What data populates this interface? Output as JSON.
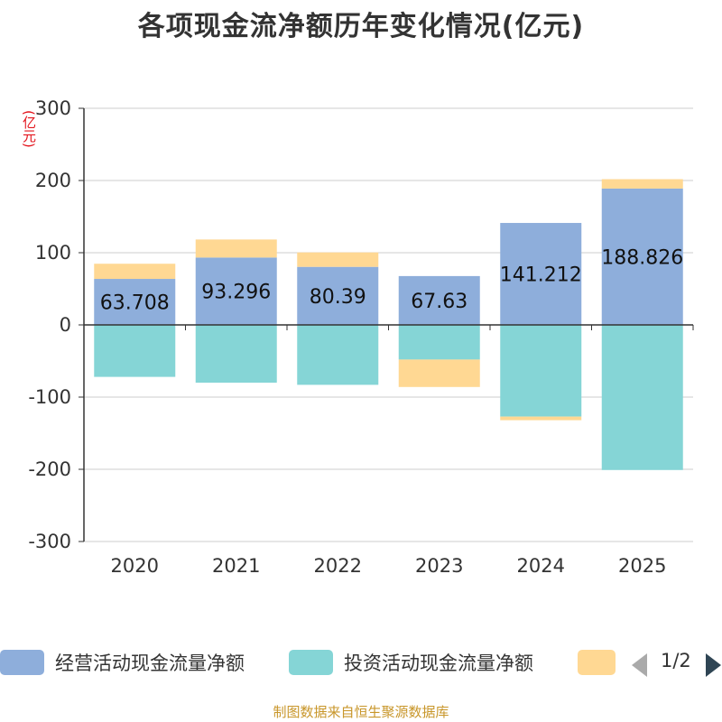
{
  "chart_data": {
    "type": "bar",
    "stacked": true,
    "title": "各项现金流净额历年变化情况(亿元)",
    "ylabel": "(亿元)",
    "ylim": [
      -300,
      300
    ],
    "yticks": [
      300,
      200,
      100,
      0,
      -100,
      -200,
      -300
    ],
    "categories": [
      "2020",
      "2021",
      "2022",
      "2023",
      "2024",
      "2025"
    ],
    "series": [
      {
        "name": "经营活动现金流量净额",
        "color": "#8eaedb",
        "values": [
          63.708,
          93.296,
          80.39,
          67.63,
          141.212,
          188.826
        ],
        "labels": [
          "63.708",
          "93.296",
          "80.39",
          "67.63",
          "141.212",
          "188.826"
        ]
      },
      {
        "name": "投资活动现金流量净额",
        "color": "#85d5d6",
        "values": [
          -72,
          -80,
          -83,
          -48,
          -127,
          -201
        ]
      },
      {
        "name": "",
        "color": "#ffd893",
        "values": [
          21,
          25,
          20,
          -38,
          -5,
          13
        ]
      }
    ],
    "legend_position": "bottom"
  },
  "legend": {
    "items": [
      {
        "label": "经营活动现金流量净额",
        "color": "#8eaedb"
      },
      {
        "label": "投资活动现金流量净额",
        "color": "#85d5d6"
      },
      {
        "label": "",
        "color": "#ffd893"
      }
    ],
    "page": "1/2"
  },
  "source": "制图数据来自恒生聚源数据库"
}
